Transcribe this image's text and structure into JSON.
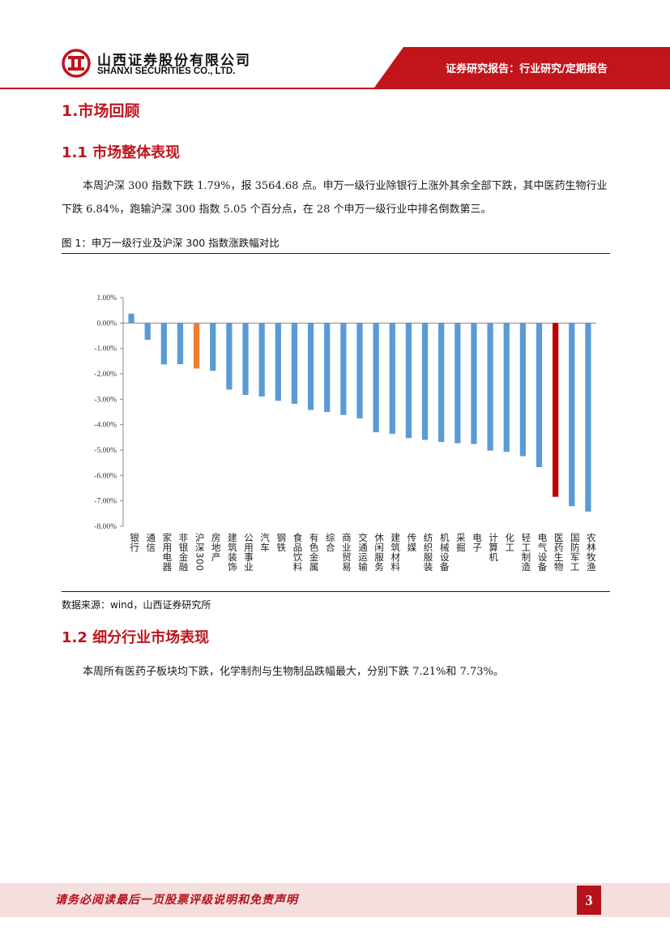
{
  "header": {
    "company_cn": "山西证券股份有限公司",
    "company_en": "SHANXI SECURITIES CO., LTD.",
    "report_tag": "证券研究报告：行业研究/定期报告",
    "brand_color": "#c0151b"
  },
  "section1": {
    "title": "1.市场回顾"
  },
  "section1_1": {
    "title": "1.1 市场整体表现",
    "paragraph": "本周沪深 300 指数下跌 1.79%，报 3564.68 点。申万一级行业除银行上涨外其余全部下跌，其中医药生物行业下跌 6.84%，跑输沪深 300 指数 5.05 个百分点，在 28 个申万一级行业中排名倒数第三。"
  },
  "figure1": {
    "caption": "图 1：申万一级行业及沪深 300 指数涨跌幅对比",
    "source": "数据来源：wind，山西证券研究所"
  },
  "chart_data": {
    "type": "bar",
    "title": "",
    "xlabel": "",
    "ylabel": "",
    "ylim": [
      -8,
      1
    ],
    "yticks": [
      1,
      0,
      -1,
      -2,
      -3,
      -4,
      -5,
      -6,
      -7,
      -8
    ],
    "ytick_labels": [
      "1.00%",
      "0.00%",
      "-1.00%",
      "-2.00%",
      "-3.00%",
      "-4.00%",
      "-5.00%",
      "-6.00%",
      "-7.00%",
      "-8.00%"
    ],
    "categories": [
      "银行",
      "通信",
      "家用电器",
      "非银金融",
      "沪深300",
      "房地产",
      "建筑装饰",
      "公用事业",
      "汽车",
      "钢铁",
      "食品饮料",
      "有色金属",
      "综合",
      "商业贸易",
      "交通运输",
      "休闲服务",
      "建筑材料",
      "传媒",
      "纺织服装",
      "机械设备",
      "采掘",
      "电子",
      "计算机",
      "化工",
      "轻工制造",
      "电气设备",
      "医药生物",
      "国防军工",
      "农林牧渔"
    ],
    "values": [
      0.37,
      -0.66,
      -1.63,
      -1.62,
      -1.79,
      -1.88,
      -2.62,
      -2.83,
      -2.89,
      -3.06,
      -3.18,
      -3.42,
      -3.5,
      -3.62,
      -3.75,
      -4.3,
      -4.36,
      -4.53,
      -4.6,
      -4.68,
      -4.73,
      -4.76,
      -5.02,
      -5.07,
      -5.24,
      -5.67,
      -6.84,
      -7.21,
      -7.42
    ],
    "colors": {
      "default": "#5b9bd5",
      "benchmark": "#ed7d31",
      "highlight": "#c00000"
    },
    "benchmark_category": "沪深300",
    "highlight_category": "医药生物"
  },
  "section1_2": {
    "title": "1.2 细分行业市场表现",
    "paragraph": "本周所有医药子板块均下跌，化学制剂与生物制品跌幅最大，分别下跌 7.21%和 7.73%。"
  },
  "footer": {
    "disclaimer": "请务必阅读最后一页股票评级说明和免责声明",
    "page_number": "3"
  }
}
